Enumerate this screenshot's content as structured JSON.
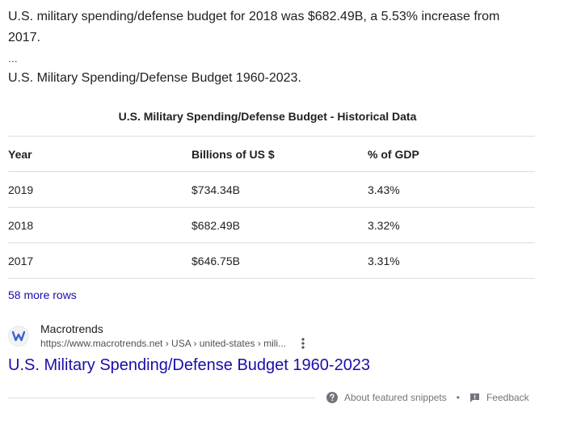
{
  "snippet": {
    "line1": "U.S. military spending/defense budget for 2018 was $682.49B, a 5.53% increase from",
    "line2": "2017.",
    "ellipsis": "...",
    "line3": "U.S. Military Spending/Defense Budget 1960-2023."
  },
  "table": {
    "title": "U.S. Military Spending/Defense Budget - Historical Data",
    "headers": [
      "Year",
      "Billions of US $",
      "% of GDP"
    ],
    "rows": [
      [
        "2019",
        "$734.34B",
        "3.43%"
      ],
      [
        "2018",
        "$682.49B",
        "3.32%"
      ],
      [
        "2017",
        "$646.75B",
        "3.31%"
      ]
    ]
  },
  "more_rows": "58 more rows",
  "source": {
    "name": "Macrotrends",
    "url": "https://www.macrotrends.net › USA › united-states › mili...",
    "favicon_icon": "macrotrends-logo-icon",
    "menu_icon": "three-dots-vertical-icon"
  },
  "result": {
    "title": "U.S. Military Spending/Defense Budget 1960-2023"
  },
  "footer": {
    "about_label": "About featured snippets",
    "about_icon": "help-circle-icon",
    "separator": "•",
    "feedback_label": "Feedback",
    "feedback_icon": "feedback-icon"
  },
  "colors": {
    "link": "#1a0dab",
    "text": "#202124",
    "secondary": "#4d5156",
    "muted": "#70757a",
    "divider": "#dadce0",
    "brand": "#3c5fce"
  }
}
